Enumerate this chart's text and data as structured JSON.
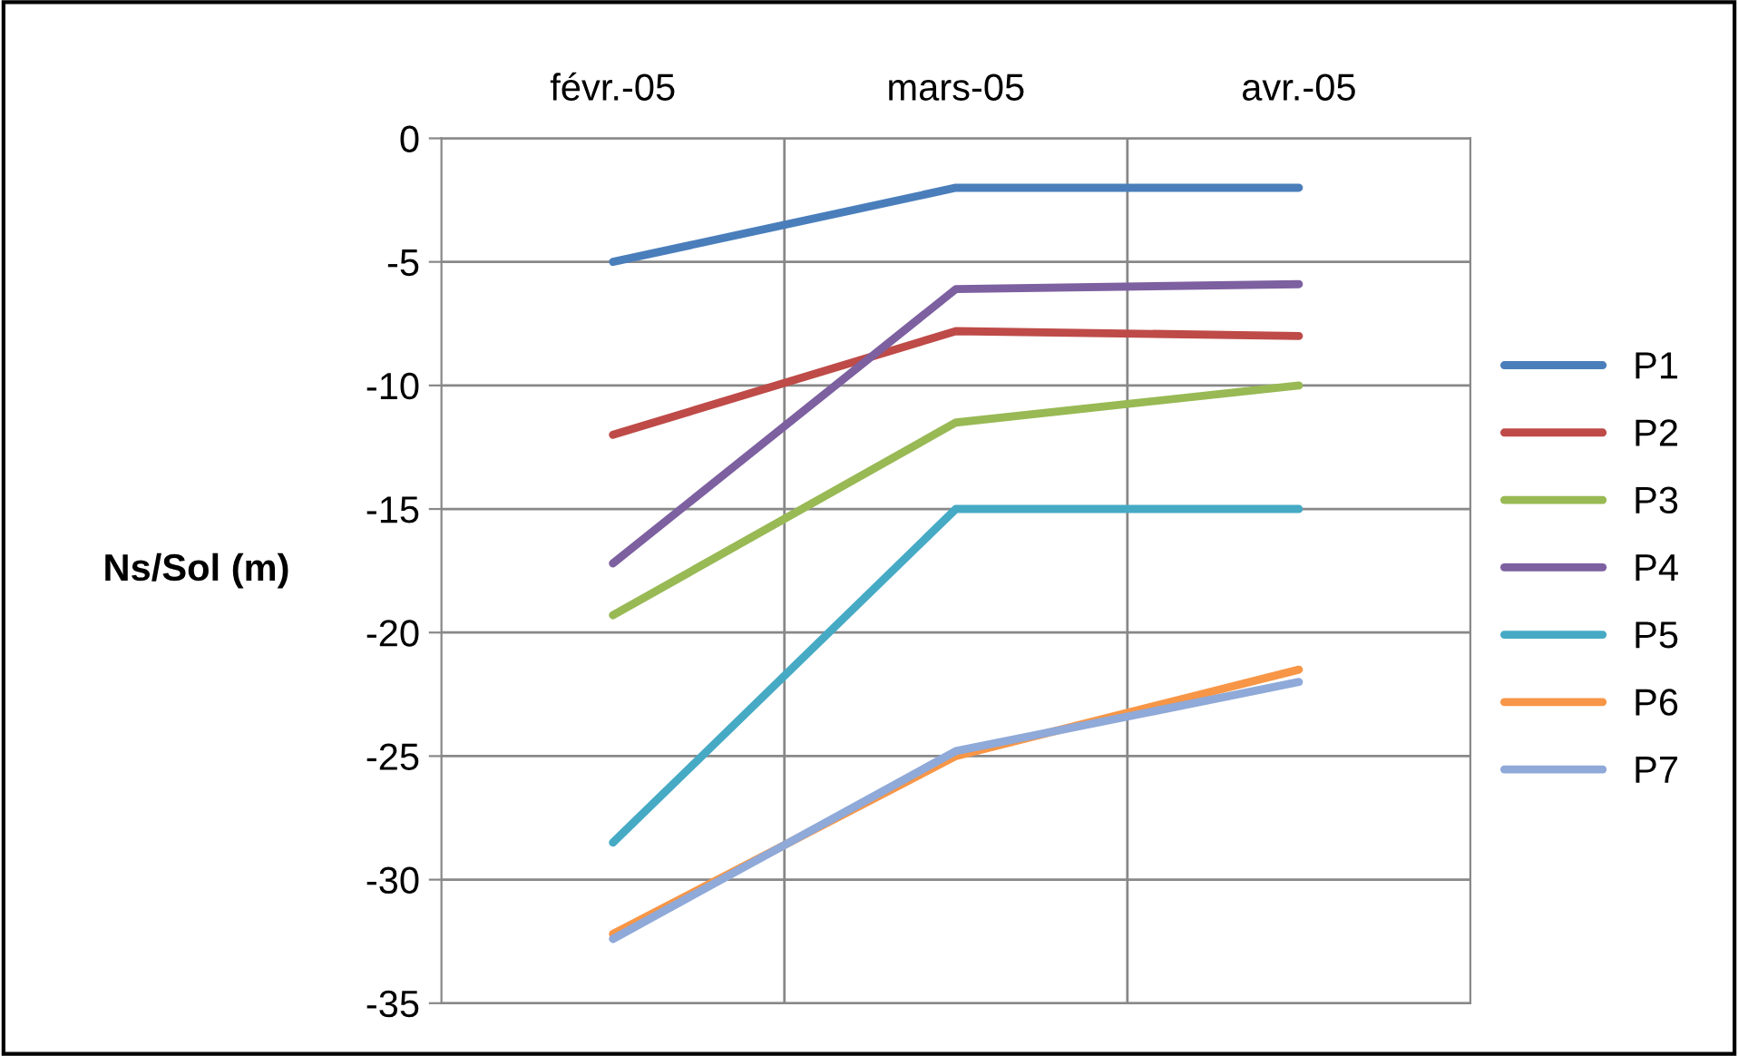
{
  "chart_data": {
    "type": "line",
    "ylabel": "Ns/Sol (m)",
    "categories": [
      "févr.-05",
      "mars-05",
      "avr.-05"
    ],
    "series": [
      {
        "name": "P1",
        "color": "#4a7ebb",
        "values": [
          -5,
          -2,
          -2
        ]
      },
      {
        "name": "P2",
        "color": "#be4b48",
        "values": [
          -12,
          -7.8,
          -8
        ]
      },
      {
        "name": "P3",
        "color": "#98b954",
        "values": [
          -19.3,
          -11.5,
          -10
        ]
      },
      {
        "name": "P4",
        "color": "#7d60a0",
        "values": [
          -17.2,
          -6.1,
          -5.9
        ]
      },
      {
        "name": "P5",
        "color": "#46aac5",
        "values": [
          -28.5,
          -15,
          -15
        ]
      },
      {
        "name": "P6",
        "color": "#f79646",
        "values": [
          -32.2,
          -25,
          -21.5
        ]
      },
      {
        "name": "P7",
        "color": "#8fa9d8",
        "values": [
          -32.4,
          -24.8,
          -22
        ]
      }
    ],
    "ylim": [
      -35,
      0
    ],
    "yticks": [
      0,
      -5,
      -10,
      -15,
      -20,
      -25,
      -30,
      -35
    ],
    "grid": true,
    "legend": "right",
    "marker": "none",
    "line_style": "solid"
  }
}
